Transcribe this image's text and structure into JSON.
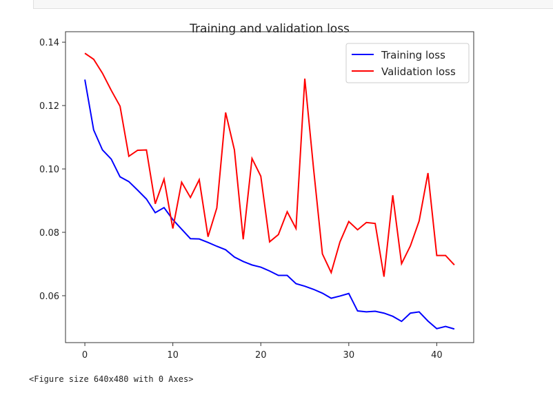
{
  "output_text": "<Figure size 640x480 with 0 Axes>",
  "chart_data": {
    "type": "line",
    "title": "Training and validation loss",
    "xlabel": "",
    "ylabel": "",
    "xlim": [
      -2.2,
      44.2
    ],
    "ylim": [
      0.0452,
      0.1433
    ],
    "xticks": [
      0,
      10,
      20,
      30,
      40
    ],
    "yticks": [
      0.06,
      0.08,
      0.1,
      0.12,
      0.14
    ],
    "ytick_labels": [
      "0.06",
      "0.08",
      "0.10",
      "0.12",
      "0.14"
    ],
    "grid": false,
    "legend_position": "top-right",
    "x": [
      0,
      1,
      2,
      3,
      4,
      5,
      6,
      7,
      8,
      9,
      10,
      11,
      12,
      13,
      14,
      15,
      16,
      17,
      18,
      19,
      20,
      21,
      22,
      23,
      24,
      25,
      26,
      27,
      28,
      29,
      30,
      31,
      32,
      33,
      34,
      35,
      36,
      37,
      38,
      39,
      40,
      41,
      42
    ],
    "series": [
      {
        "name": "Training loss",
        "color": "#0000ff",
        "values": [
          0.1282,
          0.1123,
          0.106,
          0.1031,
          0.0975,
          0.096,
          0.0933,
          0.0905,
          0.0862,
          0.0878,
          0.084,
          0.081,
          0.078,
          0.0779,
          0.0768,
          0.0756,
          0.0745,
          0.0722,
          0.0708,
          0.0697,
          0.069,
          0.0678,
          0.0664,
          0.0664,
          0.0638,
          0.063,
          0.062,
          0.0608,
          0.0592,
          0.0599,
          0.0607,
          0.0552,
          0.0549,
          0.0551,
          0.0545,
          0.0535,
          0.0519,
          0.0545,
          0.0549,
          0.052,
          0.0496,
          0.0503,
          0.0495
        ]
      },
      {
        "name": "Validation loss",
        "color": "#ff0000",
        "values": [
          0.1365,
          0.1346,
          0.1302,
          0.1248,
          0.1198,
          0.104,
          0.1059,
          0.106,
          0.089,
          0.0968,
          0.0812,
          0.0958,
          0.091,
          0.0966,
          0.0786,
          0.0877,
          0.1178,
          0.106,
          0.0778,
          0.1033,
          0.0977,
          0.077,
          0.0793,
          0.0865,
          0.0812,
          0.1285,
          0.1,
          0.0732,
          0.0673,
          0.077,
          0.0834,
          0.0808,
          0.0831,
          0.0828,
          0.066,
          0.0917,
          0.0701,
          0.0757,
          0.0836,
          0.0987,
          0.0727,
          0.0727,
          0.0697
        ]
      }
    ]
  }
}
